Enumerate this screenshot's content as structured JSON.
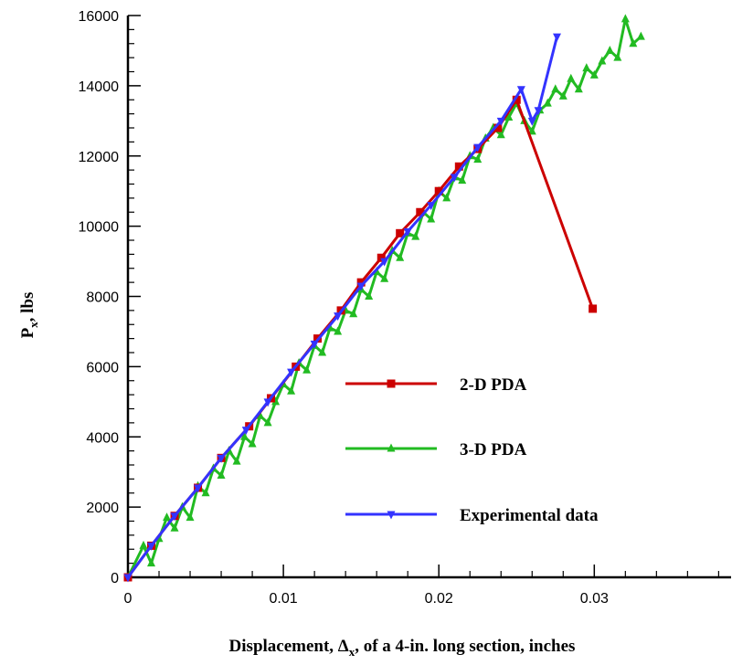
{
  "chart_data": {
    "type": "line",
    "xlabel": {
      "pre": "Displacement, Δ",
      "sub": "x",
      "post": ", of a 4-in. long section, inches"
    },
    "ylabel": {
      "pre": "P",
      "sub": "x",
      "post": ", lbs"
    },
    "xlim": [
      0,
      0.0388
    ],
    "ylim": [
      0,
      16000
    ],
    "x_ticks": [
      0,
      0.01,
      0.02,
      0.03
    ],
    "x_tick_labels": [
      "0",
      "0.01",
      "0.02",
      "0.03"
    ],
    "y_ticks": [
      0,
      2000,
      4000,
      6000,
      8000,
      10000,
      12000,
      14000,
      16000
    ],
    "y_tick_labels": [
      "0",
      "2000",
      "4000",
      "6000",
      "8000",
      "10000",
      "12000",
      "14000",
      "16000"
    ],
    "grid": false,
    "legend_position": "lower-right",
    "series": [
      {
        "name": "2-D PDA",
        "color": "#cc0000",
        "marker": "square",
        "x": [
          0,
          0.0015,
          0.003,
          0.0045,
          0.006,
          0.0078,
          0.0092,
          0.0108,
          0.0122,
          0.0137,
          0.015,
          0.0163,
          0.0175,
          0.0188,
          0.02,
          0.0213,
          0.0225,
          0.0238,
          0.025,
          0.0299
        ],
        "y": [
          0,
          900,
          1750,
          2550,
          3400,
          4300,
          5100,
          6000,
          6800,
          7600,
          8400,
          9100,
          9800,
          10400,
          11000,
          11700,
          12200,
          12800,
          13600,
          7650
        ]
      },
      {
        "name": "3-D PDA",
        "color": "#22bb22",
        "marker": "triangle-up",
        "x": [
          0,
          0.001,
          0.0015,
          0.002,
          0.0025,
          0.003,
          0.0035,
          0.004,
          0.0045,
          0.005,
          0.0055,
          0.006,
          0.0065,
          0.007,
          0.0075,
          0.008,
          0.0085,
          0.009,
          0.0095,
          0.01,
          0.0105,
          0.011,
          0.0115,
          0.012,
          0.0125,
          0.013,
          0.0135,
          0.014,
          0.0145,
          0.015,
          0.0155,
          0.016,
          0.0165,
          0.017,
          0.0175,
          0.018,
          0.0185,
          0.019,
          0.0195,
          0.02,
          0.0205,
          0.021,
          0.0215,
          0.022,
          0.0225,
          0.023,
          0.0235,
          0.024,
          0.0245,
          0.025,
          0.0255,
          0.026,
          0.0265,
          0.027,
          0.0275,
          0.028,
          0.0285,
          0.029,
          0.0295,
          0.03,
          0.0305,
          0.031,
          0.0315,
          0.032,
          0.0325,
          0.033
        ],
        "y": [
          0,
          900,
          400,
          1100,
          1700,
          1400,
          2000,
          1700,
          2600,
          2400,
          3100,
          2900,
          3600,
          3300,
          4000,
          3800,
          4600,
          4400,
          5000,
          5500,
          5300,
          6100,
          5900,
          6600,
          6400,
          7100,
          7000,
          7600,
          7500,
          8200,
          8000,
          8700,
          8500,
          9300,
          9100,
          9800,
          9700,
          10400,
          10200,
          11000,
          10800,
          11400,
          11300,
          12000,
          11900,
          12500,
          12800,
          12600,
          13100,
          13500,
          13000,
          12700,
          13300,
          13500,
          13900,
          13700,
          14200,
          13900,
          14500,
          14300,
          14700,
          15000,
          14800,
          15900,
          15200,
          15400
        ]
      },
      {
        "name": "Experimental data",
        "color": "#3333ff",
        "marker": "triangle-down",
        "x": [
          0,
          0.0015,
          0.003,
          0.0045,
          0.006,
          0.0076,
          0.009,
          0.0105,
          0.012,
          0.0135,
          0.015,
          0.0165,
          0.018,
          0.0195,
          0.021,
          0.0225,
          0.024,
          0.0253,
          0.026,
          0.0264,
          0.0276
        ],
        "y": [
          0,
          900,
          1750,
          2550,
          3400,
          4200,
          5000,
          5850,
          6650,
          7450,
          8300,
          9000,
          9850,
          10600,
          11400,
          12250,
          13000,
          13900,
          13000,
          13300,
          15400
        ]
      }
    ]
  }
}
